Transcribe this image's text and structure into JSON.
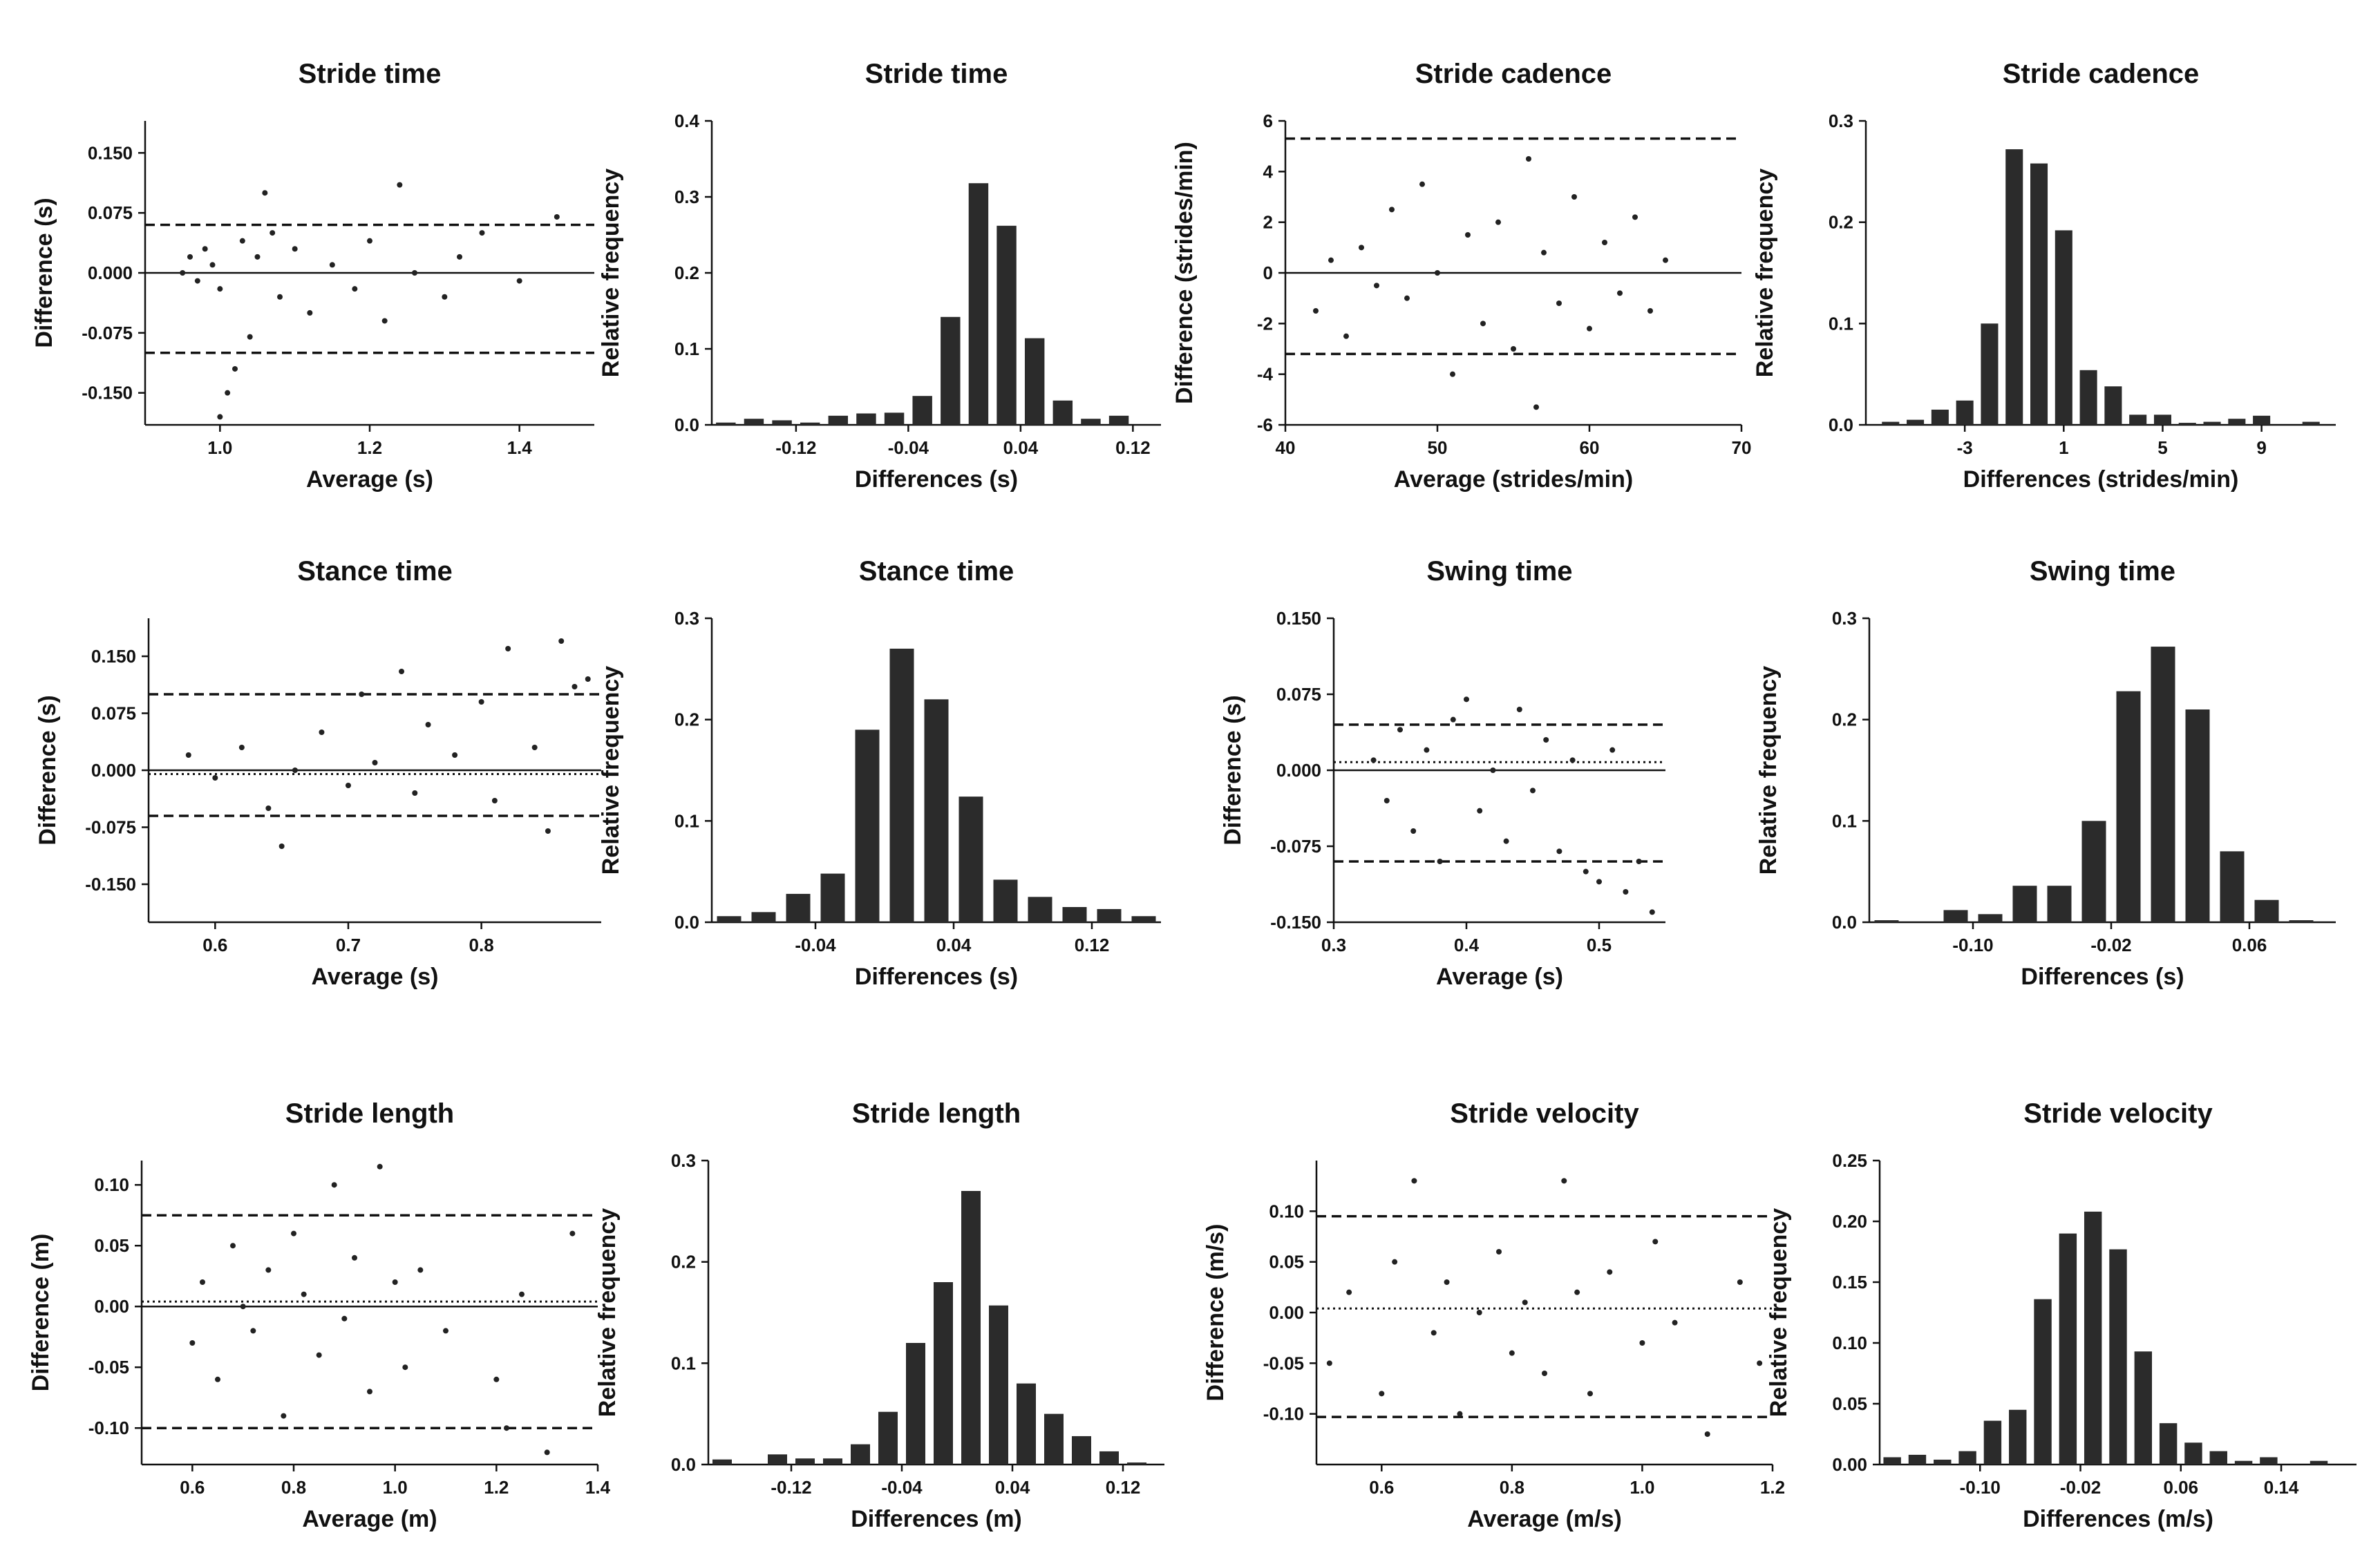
{
  "chart_data": [
    {
      "type": "scatter",
      "title": "Stride time",
      "xlabel": "Average (s)",
      "ylabel": "Difference (s)",
      "xlim": [
        0.9,
        1.5
      ],
      "ylim": [
        -0.19,
        0.19
      ],
      "xticks": [
        1.0,
        1.2,
        1.4
      ],
      "xtick_labels": [
        "1.0",
        "1.2",
        "1.4"
      ],
      "yticks": [
        -0.15,
        -0.075,
        0.0,
        0.075,
        0.15
      ],
      "ytick_labels": [
        "-0.150",
        "-0.075",
        "0.000",
        "0.075",
        "0.150"
      ],
      "bias": 0.0,
      "bias_style": "solid",
      "loa": [
        -0.1,
        0.06
      ],
      "points": [
        [
          0.95,
          0.0
        ],
        [
          0.96,
          0.02
        ],
        [
          0.97,
          -0.01
        ],
        [
          0.98,
          0.03
        ],
        [
          0.99,
          0.01
        ],
        [
          1.0,
          -0.02
        ],
        [
          1.0,
          -0.18
        ],
        [
          1.01,
          -0.15
        ],
        [
          1.02,
          -0.12
        ],
        [
          1.03,
          0.04
        ],
        [
          1.04,
          -0.08
        ],
        [
          1.05,
          0.02
        ],
        [
          1.06,
          0.1
        ],
        [
          1.07,
          0.05
        ],
        [
          1.08,
          -0.03
        ],
        [
          1.1,
          0.03
        ],
        [
          1.12,
          -0.05
        ],
        [
          1.15,
          0.01
        ],
        [
          1.18,
          -0.02
        ],
        [
          1.2,
          0.04
        ],
        [
          1.22,
          -0.06
        ],
        [
          1.24,
          0.11
        ],
        [
          1.26,
          0.0
        ],
        [
          1.3,
          -0.03
        ],
        [
          1.32,
          0.02
        ],
        [
          1.35,
          0.05
        ],
        [
          1.4,
          -0.01
        ],
        [
          1.45,
          0.07
        ]
      ]
    },
    {
      "type": "bar",
      "title": "Stride time",
      "xlabel": "Differences (s)",
      "ylabel": "Relative frequency",
      "xlim": [
        -0.18,
        0.14
      ],
      "ylim": [
        0,
        0.4
      ],
      "xticks": [
        -0.12,
        -0.04,
        0.04,
        0.12
      ],
      "xtick_labels": [
        "-0.12",
        "-0.04",
        "0.04",
        "0.12"
      ],
      "yticks": [
        0,
        0.1,
        0.2,
        0.3,
        0.4
      ],
      "ytick_labels": [
        "0.0",
        "0.1",
        "0.2",
        "0.3",
        "0.4"
      ],
      "bins": [
        -0.17,
        -0.15,
        -0.13,
        -0.11,
        -0.09,
        -0.07,
        -0.05,
        -0.03,
        -0.01,
        0.01,
        0.03,
        0.05,
        0.07,
        0.09,
        0.11
      ],
      "values": [
        0.003,
        0.008,
        0.006,
        0.003,
        0.012,
        0.015,
        0.016,
        0.038,
        0.142,
        0.318,
        0.262,
        0.114,
        0.032,
        0.008,
        0.012
      ]
    },
    {
      "type": "scatter",
      "title": "Stride cadence",
      "xlabel": "Average (strides/min)",
      "ylabel": "Difference (strides/min)",
      "xlim": [
        40,
        70
      ],
      "ylim": [
        -6,
        6
      ],
      "xticks": [
        40,
        50,
        60,
        70
      ],
      "xtick_labels": [
        "40",
        "50",
        "60",
        "70"
      ],
      "yticks": [
        -6,
        -4,
        -2,
        0,
        2,
        4,
        6
      ],
      "ytick_labels": [
        "-6",
        "-4",
        "-2",
        "0",
        "2",
        "4",
        "6"
      ],
      "bias": 0,
      "bias_style": "solid",
      "loa": [
        -3.2,
        5.3
      ],
      "points": [
        [
          42,
          -1.5
        ],
        [
          43,
          0.5
        ],
        [
          44,
          -2.5
        ],
        [
          45,
          1.0
        ],
        [
          46,
          -0.5
        ],
        [
          47,
          2.5
        ],
        [
          48,
          -1.0
        ],
        [
          49,
          3.5
        ],
        [
          50,
          0.0
        ],
        [
          51,
          -4.0
        ],
        [
          52,
          1.5
        ],
        [
          53,
          -2.0
        ],
        [
          54,
          2.0
        ],
        [
          55,
          -3.0
        ],
        [
          56,
          4.5
        ],
        [
          56.5,
          -5.3
        ],
        [
          57,
          0.8
        ],
        [
          58,
          -1.2
        ],
        [
          59,
          3.0
        ],
        [
          60,
          -2.2
        ],
        [
          61,
          1.2
        ],
        [
          62,
          -0.8
        ],
        [
          63,
          2.2
        ],
        [
          64,
          -1.5
        ],
        [
          65,
          0.5
        ]
      ]
    },
    {
      "type": "bar",
      "title": "Stride cadence",
      "xlabel": "Differences (strides/min)",
      "ylabel": "Relative frequency",
      "xlim": [
        -7,
        12
      ],
      "ylim": [
        0,
        0.3
      ],
      "xticks": [
        -3,
        1,
        5,
        9
      ],
      "xtick_labels": [
        "-3",
        "1",
        "5",
        "9"
      ],
      "yticks": [
        0,
        0.1,
        0.2,
        0.3
      ],
      "ytick_labels": [
        "0.0",
        "0.1",
        "0.2",
        "0.3"
      ],
      "bins": [
        -6,
        -5,
        -4,
        -3,
        -2,
        -1,
        0,
        1,
        2,
        3,
        4,
        5,
        6,
        7,
        8,
        9,
        10,
        11
      ],
      "values": [
        0.003,
        0.005,
        0.015,
        0.024,
        0.1,
        0.272,
        0.258,
        0.192,
        0.054,
        0.038,
        0.01,
        0.01,
        0.002,
        0.003,
        0.006,
        0.009,
        0.0,
        0.003
      ]
    },
    {
      "type": "scatter",
      "title": "Stance time",
      "xlabel": "Average (s)",
      "ylabel": "Difference (s)",
      "xlim": [
        0.55,
        0.89
      ],
      "ylim": [
        -0.2,
        0.2
      ],
      "xticks": [
        0.6,
        0.7,
        0.8
      ],
      "xtick_labels": [
        "0.6",
        "0.7",
        "0.8"
      ],
      "yticks": [
        -0.15,
        -0.075,
        0.0,
        0.075,
        0.15
      ],
      "ytick_labels": [
        "-0.150",
        "-0.075",
        "0.000",
        "0.075",
        "0.150"
      ],
      "bias": -0.005,
      "bias_style": "dotted",
      "zero_line": true,
      "loa": [
        -0.06,
        0.1
      ],
      "points": [
        [
          0.58,
          0.02
        ],
        [
          0.6,
          -0.01
        ],
        [
          0.62,
          0.03
        ],
        [
          0.64,
          -0.05
        ],
        [
          0.65,
          -0.1
        ],
        [
          0.66,
          0.0
        ],
        [
          0.68,
          0.05
        ],
        [
          0.7,
          -0.02
        ],
        [
          0.71,
          0.1
        ],
        [
          0.72,
          0.01
        ],
        [
          0.74,
          0.13
        ],
        [
          0.75,
          -0.03
        ],
        [
          0.76,
          0.06
        ],
        [
          0.78,
          0.02
        ],
        [
          0.8,
          0.09
        ],
        [
          0.81,
          -0.04
        ],
        [
          0.82,
          0.16
        ],
        [
          0.84,
          0.03
        ],
        [
          0.85,
          -0.08
        ],
        [
          0.86,
          0.17
        ],
        [
          0.87,
          0.11
        ],
        [
          0.88,
          0.12
        ]
      ]
    },
    {
      "type": "bar",
      "title": "Stance time",
      "xlabel": "Differences  (s)",
      "ylabel": "Relative frequency",
      "xlim": [
        -0.1,
        0.16
      ],
      "ylim": [
        0,
        0.3
      ],
      "xticks": [
        -0.04,
        0.04,
        0.12
      ],
      "xtick_labels": [
        "-0.04",
        "0.04",
        "0.12"
      ],
      "yticks": [
        0,
        0.1,
        0.2,
        0.3
      ],
      "ytick_labels": [
        "0.0",
        "0.1",
        "0.2",
        "0.3"
      ],
      "bins": [
        -0.09,
        -0.07,
        -0.05,
        -0.03,
        -0.01,
        0.01,
        0.03,
        0.05,
        0.07,
        0.09,
        0.11,
        0.13,
        0.15
      ],
      "values": [
        0.006,
        0.01,
        0.028,
        0.048,
        0.19,
        0.27,
        0.22,
        0.124,
        0.042,
        0.025,
        0.015,
        0.013,
        0.006
      ]
    },
    {
      "type": "scatter",
      "title": "Swing time",
      "xlabel": "Average (s)",
      "ylabel": "Difference (s)",
      "xlim": [
        0.3,
        0.55
      ],
      "ylim": [
        -0.15,
        0.15
      ],
      "xticks": [
        0.3,
        0.4,
        0.5
      ],
      "xtick_labels": [
        "0.3",
        "0.4",
        "0.5"
      ],
      "yticks": [
        -0.15,
        -0.075,
        0.0,
        0.075,
        0.15
      ],
      "ytick_labels": [
        "-0.150",
        "-0.075",
        "0.000",
        "0.075",
        "0.150"
      ],
      "bias": 0.008,
      "bias_style": "dotted",
      "zero_line": true,
      "loa": [
        -0.09,
        0.045
      ],
      "points": [
        [
          0.33,
          0.01
        ],
        [
          0.34,
          -0.03
        ],
        [
          0.35,
          0.04
        ],
        [
          0.36,
          -0.06
        ],
        [
          0.37,
          0.02
        ],
        [
          0.38,
          -0.09
        ],
        [
          0.39,
          0.05
        ],
        [
          0.4,
          0.07
        ],
        [
          0.41,
          -0.04
        ],
        [
          0.42,
          0.0
        ],
        [
          0.43,
          -0.07
        ],
        [
          0.44,
          0.06
        ],
        [
          0.45,
          -0.02
        ],
        [
          0.46,
          0.03
        ],
        [
          0.47,
          -0.08
        ],
        [
          0.48,
          0.01
        ],
        [
          0.49,
          -0.1
        ],
        [
          0.5,
          -0.11
        ],
        [
          0.51,
          0.02
        ],
        [
          0.52,
          -0.12
        ],
        [
          0.53,
          -0.09
        ],
        [
          0.54,
          -0.14
        ]
      ]
    },
    {
      "type": "bar",
      "title": "Swing time",
      "xlabel": "Differences (s)",
      "ylabel": "Relative frequency",
      "xlim": [
        -0.16,
        0.11
      ],
      "ylim": [
        0,
        0.3
      ],
      "xticks": [
        -0.1,
        -0.02,
        0.06
      ],
      "xtick_labels": [
        "-0.10",
        "-0.02",
        "0.06"
      ],
      "yticks": [
        0,
        0.1,
        0.2,
        0.3
      ],
      "ytick_labels": [
        "0.0",
        "0.1",
        "0.2",
        "0.3"
      ],
      "bins": [
        -0.15,
        -0.13,
        -0.11,
        -0.09,
        -0.07,
        -0.05,
        -0.03,
        -0.01,
        0.01,
        0.03,
        0.05,
        0.07,
        0.09
      ],
      "values": [
        0.002,
        0.0,
        0.012,
        0.008,
        0.036,
        0.036,
        0.1,
        0.228,
        0.272,
        0.21,
        0.07,
        0.022,
        0.002
      ]
    },
    {
      "type": "scatter",
      "title": "Stride length",
      "xlabel": "Average (m)",
      "ylabel": "Difference (m)",
      "xlim": [
        0.5,
        1.4
      ],
      "ylim": [
        -0.13,
        0.12
      ],
      "xticks": [
        0.6,
        0.8,
        1.0,
        1.2,
        1.4
      ],
      "xtick_labels": [
        "0.6",
        "0.8",
        "1.0",
        "1.2",
        "1.4"
      ],
      "yticks": [
        -0.1,
        -0.05,
        0.0,
        0.05,
        0.1
      ],
      "ytick_labels": [
        "-0.10",
        "-0.05",
        "0.00",
        "0.05",
        "0.10"
      ],
      "bias": 0.004,
      "bias_style": "dotted",
      "zero_line": true,
      "loa": [
        -0.1,
        0.075
      ],
      "points": [
        [
          0.6,
          -0.03
        ],
        [
          0.62,
          0.02
        ],
        [
          0.65,
          -0.06
        ],
        [
          0.68,
          0.05
        ],
        [
          0.7,
          0.0
        ],
        [
          0.72,
          -0.02
        ],
        [
          0.75,
          0.03
        ],
        [
          0.78,
          -0.09
        ],
        [
          0.8,
          0.06
        ],
        [
          0.82,
          0.01
        ],
        [
          0.85,
          -0.04
        ],
        [
          0.88,
          0.1
        ],
        [
          0.9,
          -0.01
        ],
        [
          0.92,
          0.04
        ],
        [
          0.95,
          -0.07
        ],
        [
          0.97,
          0.115
        ],
        [
          1.0,
          0.02
        ],
        [
          1.02,
          -0.05
        ],
        [
          1.05,
          0.03
        ],
        [
          1.1,
          -0.02
        ],
        [
          1.2,
          -0.06
        ],
        [
          1.22,
          -0.1
        ],
        [
          1.25,
          0.01
        ],
        [
          1.3,
          -0.12
        ],
        [
          1.35,
          0.06
        ]
      ]
    },
    {
      "type": "bar",
      "title": "Stride length",
      "xlabel": "Differences (m)",
      "ylabel": "Relative frequency",
      "xlim": [
        -0.18,
        0.15
      ],
      "ylim": [
        0,
        0.3
      ],
      "xticks": [
        -0.12,
        -0.04,
        0.04,
        0.12
      ],
      "xtick_labels": [
        "-0.12",
        "-0.04",
        "0.04",
        "0.12"
      ],
      "yticks": [
        0,
        0.1,
        0.2,
        0.3
      ],
      "ytick_labels": [
        "0.0",
        "0.1",
        "0.2",
        "0.3"
      ],
      "bins": [
        -0.17,
        -0.15,
        -0.13,
        -0.11,
        -0.09,
        -0.07,
        -0.05,
        -0.03,
        -0.01,
        0.01,
        0.03,
        0.05,
        0.07,
        0.09,
        0.11,
        0.13
      ],
      "values": [
        0.005,
        0.0,
        0.01,
        0.006,
        0.006,
        0.02,
        0.052,
        0.12,
        0.18,
        0.27,
        0.157,
        0.08,
        0.05,
        0.028,
        0.013,
        0.002
      ]
    },
    {
      "type": "scatter",
      "title": "Stride velocity",
      "xlabel": "Average (m/s)",
      "ylabel": "Difference (m/s)",
      "xlim": [
        0.5,
        1.2
      ],
      "ylim": [
        -0.15,
        0.15
      ],
      "xticks": [
        0.6,
        0.8,
        1.0,
        1.2
      ],
      "xtick_labels": [
        "0.6",
        "0.8",
        "1.0",
        "1.2"
      ],
      "yticks": [
        -0.1,
        -0.05,
        0.0,
        0.05,
        0.1
      ],
      "ytick_labels": [
        "-0.10",
        "-0.05",
        "0.00",
        "0.05",
        "0.10"
      ],
      "bias": 0.004,
      "bias_style": "dotted",
      "zero_line": false,
      "loa": [
        -0.103,
        0.095
      ],
      "points": [
        [
          0.52,
          -0.05
        ],
        [
          0.55,
          0.02
        ],
        [
          0.6,
          -0.08
        ],
        [
          0.62,
          0.05
        ],
        [
          0.65,
          0.13
        ],
        [
          0.68,
          -0.02
        ],
        [
          0.7,
          0.03
        ],
        [
          0.72,
          -0.1
        ],
        [
          0.75,
          0.0
        ],
        [
          0.78,
          0.06
        ],
        [
          0.8,
          -0.04
        ],
        [
          0.82,
          0.01
        ],
        [
          0.85,
          -0.06
        ],
        [
          0.88,
          0.13
        ],
        [
          0.9,
          0.02
        ],
        [
          0.92,
          -0.08
        ],
        [
          0.95,
          0.04
        ],
        [
          1.0,
          -0.03
        ],
        [
          1.02,
          0.07
        ],
        [
          1.05,
          -0.01
        ],
        [
          1.1,
          -0.12
        ],
        [
          1.15,
          0.03
        ],
        [
          1.18,
          -0.05
        ]
      ]
    },
    {
      "type": "bar",
      "title": "Stride velocity",
      "xlabel": "Differences (m/s)",
      "ylabel": "Relative frequency",
      "xlim": [
        -0.18,
        0.2
      ],
      "ylim": [
        0,
        0.25
      ],
      "xticks": [
        -0.1,
        -0.02,
        0.06,
        0.14
      ],
      "xtick_labels": [
        "-0.10",
        "-0.02",
        "0.06",
        "0.14"
      ],
      "yticks": [
        0,
        0.05,
        0.1,
        0.15,
        0.2,
        0.25
      ],
      "ytick_labels": [
        "0.00",
        "0.05",
        "0.10",
        "0.15",
        "0.20",
        "0.25"
      ],
      "bins": [
        -0.17,
        -0.15,
        -0.13,
        -0.11,
        -0.09,
        -0.07,
        -0.05,
        -0.03,
        -0.01,
        0.01,
        0.03,
        0.05,
        0.07,
        0.09,
        0.11,
        0.13,
        0.15,
        0.17,
        0.19
      ],
      "values": [
        0.006,
        0.008,
        0.004,
        0.011,
        0.036,
        0.045,
        0.136,
        0.19,
        0.208,
        0.177,
        0.093,
        0.034,
        0.018,
        0.011,
        0.003,
        0.006,
        0.0,
        0.003,
        0.0
      ]
    }
  ]
}
